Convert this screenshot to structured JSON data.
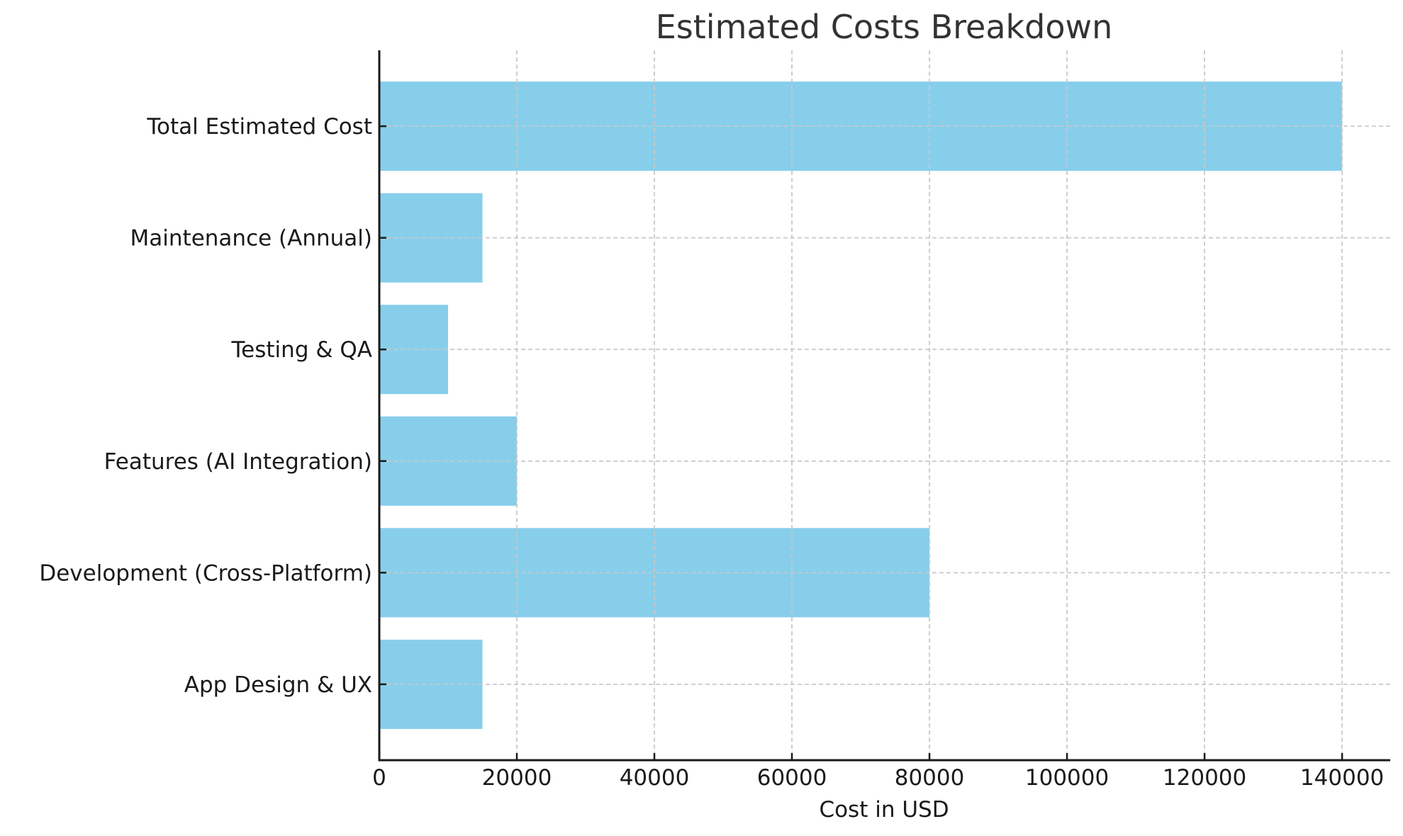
{
  "chart_data": {
    "type": "bar",
    "orientation": "horizontal",
    "title": "Estimated Costs Breakdown",
    "xlabel": "Cost in USD",
    "ylabel": "",
    "categories": [
      "App Design & UX",
      "Development (Cross-Platform)",
      "Features (AI Integration)",
      "Testing & QA",
      "Maintenance (Annual)",
      "Total Estimated Cost"
    ],
    "values": [
      15000,
      80000,
      20000,
      10000,
      15000,
      140000
    ],
    "xlim": [
      0,
      147000
    ],
    "xticks": [
      0,
      20000,
      40000,
      60000,
      80000,
      100000,
      120000,
      140000
    ],
    "xtick_labels": [
      "0",
      "20000",
      "40000",
      "60000",
      "80000",
      "100000",
      "120000",
      "140000"
    ],
    "grid": true,
    "grid_style": "dashed",
    "legend": "none",
    "colors": {
      "bar": "#87ceeb",
      "grid": "#c8c8c8",
      "axis": "#1a1a1a",
      "title": "#333333",
      "text": "#1a1a1a"
    }
  }
}
